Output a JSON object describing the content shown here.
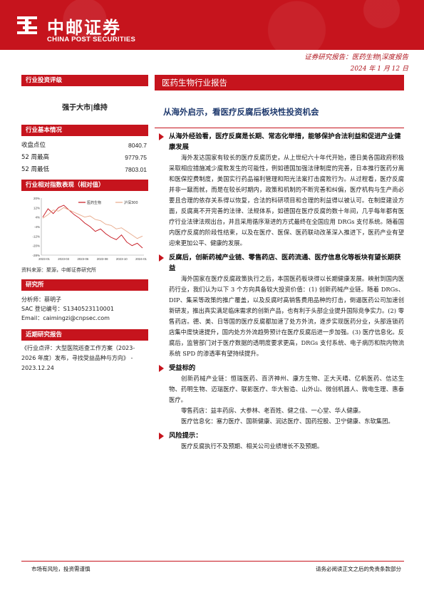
{
  "header": {
    "logo_cn": "中邮证券",
    "logo_en": "CHINA POST SECURITIES",
    "report_type": "证券研究报告：医药生物|深度报告",
    "date": "2024 年 1 月 12 日",
    "brand_color": "#c6141d"
  },
  "left": {
    "rating_head": "行业投资评级",
    "rating": "强于大市|维持",
    "basic_head": "行业基本情况",
    "basic": [
      {
        "k": "收盘点位",
        "v": "8040.7"
      },
      {
        "k": "52 周最高",
        "v": "9779.75"
      },
      {
        "k": "52 周最低",
        "v": "7803.01"
      }
    ],
    "chart_head": "行业相对指数表现（相对值）",
    "source": "资料来源：聚源，中邮证券研究所",
    "researcher_head": "研究所",
    "researcher": [
      "分析师：蔡明子",
      "SAC 登记编号：S1340523110001",
      "Email：caimingzi@cnpsec.com"
    ],
    "recent_head": "近期研究报告",
    "recent": "《行业点评：大型医院巡查工作方案（2023-2026 年度）发布，寻找受益品种与方向》 - 2023.12.24"
  },
  "chart_data": {
    "type": "line",
    "series": [
      {
        "name": "医药生物",
        "color": "#c6141d",
        "values": [
          4,
          11,
          7,
          12,
          14,
          10,
          6,
          3,
          -1,
          -4,
          -8,
          -6,
          -10,
          -13,
          -15,
          -11,
          -17,
          -20,
          -18,
          -22
        ]
      },
      {
        "name": "沪深300",
        "color": "#e8a98a",
        "values": [
          3,
          6,
          10,
          9,
          12,
          10,
          8,
          6,
          4,
          5,
          2,
          1,
          -2,
          -3,
          -6,
          -5,
          -8,
          -11,
          -14,
          -12
        ]
      }
    ],
    "x_ticks": [
      "2023-01",
      "2023-03",
      "2023-06",
      "2023-08",
      "2023-10",
      "2024-01"
    ],
    "y_ticks": [
      "20%",
      "12%",
      "4%",
      "-4%",
      "-12%",
      "-20%",
      "-28%"
    ],
    "ylim": [
      -28,
      20
    ],
    "grid": false,
    "legend": "top-right"
  },
  "right": {
    "industry_head": "医药生物行业报告",
    "title": "从海外启示，看医疗反腐后板块性投资机会",
    "sections": [
      {
        "title": "从海外经验看，医疗反腐是长期、常态化举措，能够保护合法利益和促进产业健康发展",
        "paras": [
          "海外发达国家有较长的医疗反腐历史，从上世纪六十年代开始，德日美各国政府积极采取相应措施减少腐败发生的可能性，例如德国加强法律制度的完善，日本推行医药分离和医保控费制度，美国实行药品福利管理和阳光法案打击腐败行为。从过程看，医疗反腐并非一蹴而就，而是在较长时期内，政策和机制的不断完善和纠偏，医疗机构与生产商必要且合理的依存关系得以恢复，合法的科研项目和合理的利益得以被认可。在制度建设方面，反腐离不开完善的法律、法规体系，如德国在医疗反腐的数十年间，几乎每年都有医疗行业法律法规出台，并且采用循序渐进的方式最终在全国应用 DRGs 支付系统。随着国内医疗反腐的阶段性结束，以及在医疗、医保、医药联动改革深入推进下，医药产业有望迎来更加公平、健康的发展。"
        ]
      },
      {
        "title": "反腐后，创新药械产业链、零售药店、医药流通、医疗信息化等板块有望长期获益",
        "paras": [
          "海外国家在医疗反腐政策执行之后，本国医药板块得以长期健康发展。映射到国内医药行业，我们认为以下 3 个方向具备较大投资价值：(1) 创新药械产业链。随着 DRGs、DIP、集采等政策的推广覆盖，以及反腐时高销售费用品种的打击，倒逼医药公司加速创新研发，推出真实满足临床需求的创新产品，也有利于头部企业提升国际竞争实力。(2) 零售药店。德、美、日等国的医疗反腐都加速了处方外流，逐步实现医药分业，头部连锁药店集中度快速提升，国内处方外流趋势预计在医疗反腐后进一步加强。(3) 医疗信息化。反腐后，监管部门对于医疗数据的透明度要求更高，DRGs 支付系统、电子病历和院内物流系统 SPD 的渗透率有望持续提升。"
        ]
      },
      {
        "title": "受益标的",
        "subparas": [
          "创新药械产业链：恒瑞医药、百济神州、康方生物、正大天晴、亿帆医药、信达生物、药明生物、迈瑞医疗、联影医疗、华大智造、山外山、微创机器人、微电生理、惠泰医疗。",
          "零售药店：益丰药房、大参林、老百姓、健之佳、一心堂、华人健康。",
          "医疗信息化：塞力医疗、国新健康、润达医疗、国药控股、卫宁健康、东软集团。"
        ]
      },
      {
        "title": "风险提示：",
        "paras": [
          "医疗反腐执行不及预期、相关公司业绩增长不及预期。"
        ]
      }
    ]
  },
  "footer": {
    "left": "市场有风险，投资需谨慎",
    "right": "请务必阅读正文之后的免责条款部分"
  }
}
